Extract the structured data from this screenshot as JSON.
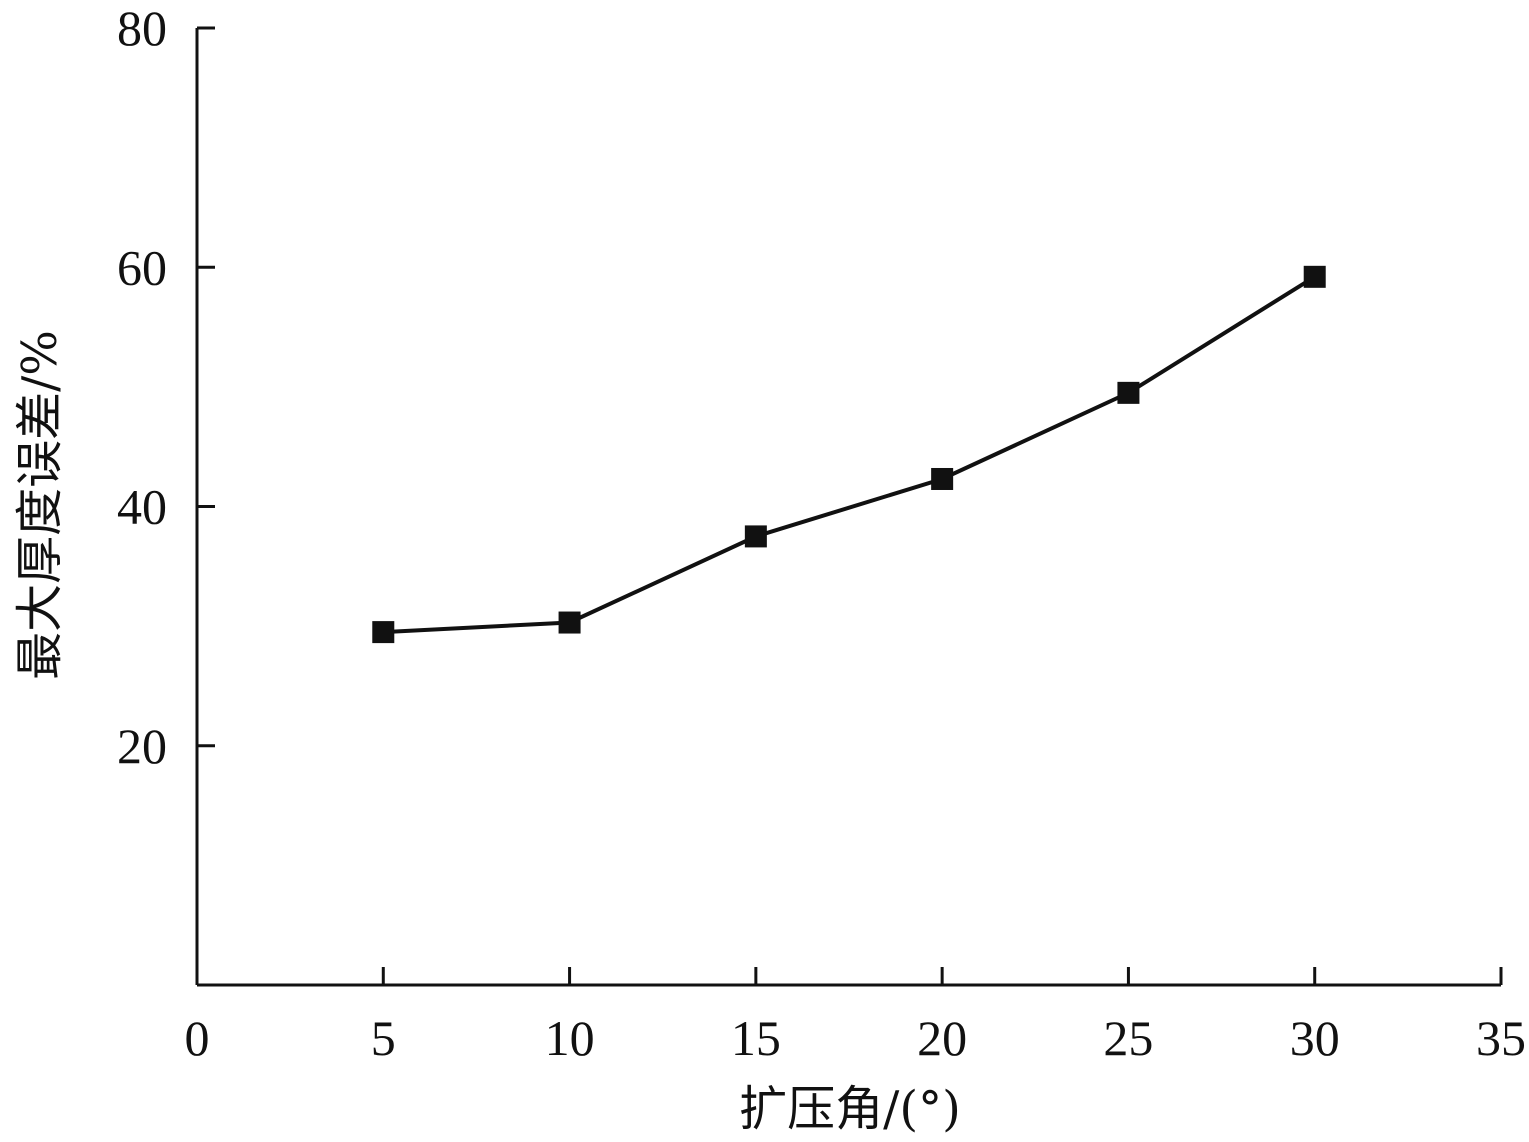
{
  "chart_data": {
    "type": "line",
    "title": "",
    "xlabel": "扩压角/(°)",
    "ylabel": "最大厚度误差/%",
    "xlim": [
      0,
      35
    ],
    "ylim": [
      0,
      80
    ],
    "xticks": [
      0,
      5,
      10,
      15,
      20,
      25,
      30,
      35
    ],
    "yticks": [
      20,
      40,
      60,
      80
    ],
    "xtick_labels": [
      "0",
      "5",
      "10",
      "15",
      "20",
      "25",
      "30",
      "35"
    ],
    "ytick_labels": [
      "20",
      "40",
      "60",
      "80"
    ],
    "grid": false,
    "series": [
      {
        "marker": "square",
        "color": "#111111",
        "x": [
          5,
          10,
          15,
          20,
          25,
          30
        ],
        "y": [
          29.5,
          30.3,
          37.5,
          42.3,
          49.5,
          59.2
        ]
      }
    ]
  }
}
